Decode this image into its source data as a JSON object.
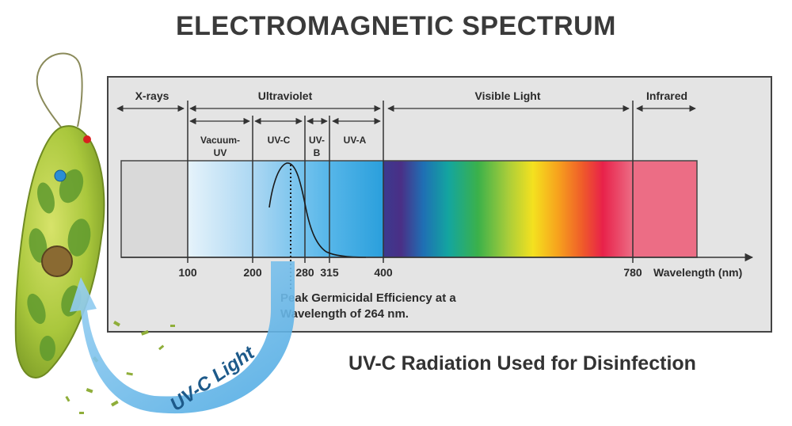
{
  "title": "ELECTROMAGNETIC SPECTRUM",
  "regions": {
    "xrays": "X-rays",
    "ultraviolet": "Ultraviolet",
    "visible": "Visible Light",
    "infrared": "Infrared"
  },
  "sub_regions": {
    "vacuum_uv_line1": "Vacuum-",
    "vacuum_uv_line2": "UV",
    "uvc": "UV-C",
    "uvb_line1": "UV-",
    "uvb_line2": "B",
    "uva": "UV-A"
  },
  "axis": {
    "ticks": [
      "100",
      "200",
      "280",
      "315",
      "400",
      "780"
    ],
    "label": "Wavelength (nm)"
  },
  "annotation": {
    "line1": "Peak Germicidal Efficiency at a",
    "line2": "Wavelength of 264 nm."
  },
  "arrow_label": "UV-C Light",
  "footer": "UV-C Radiation Used for Disinfection",
  "colors": {
    "panel": "#e4e4e4",
    "xray_band": "#d9d9d9",
    "infrared_band": "#ec6d85",
    "uv_band_light": "#dceefa",
    "uv_band_dark": "#2ea3df",
    "arrow_blue": "#5fb6e8"
  }
}
